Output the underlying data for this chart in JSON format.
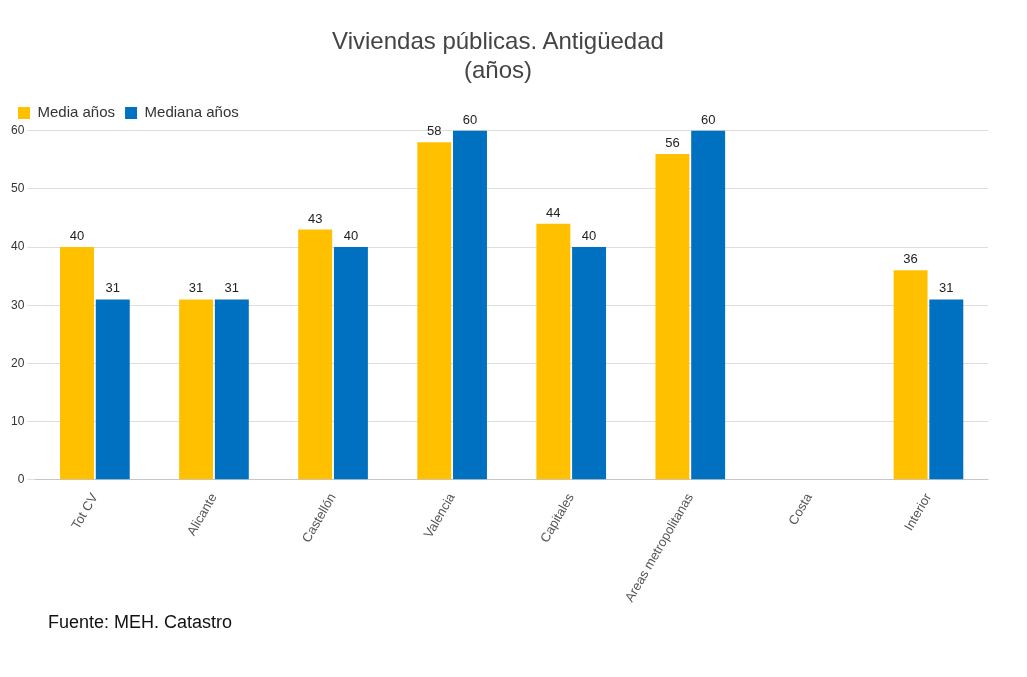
{
  "chart_data": {
    "type": "bar",
    "title": "Viviendas públicas. Antigüedad",
    "subtitle": "(años)",
    "categories": [
      "Tot CV",
      "Alicante",
      "Castellón",
      "Valencia",
      "Capitales",
      "Areas metropolitanas",
      "Costa",
      "Interior"
    ],
    "series": [
      {
        "name": "Media años",
        "color": "#ffc000",
        "values": [
          40,
          31,
          43,
          58,
          44,
          56,
          null,
          36
        ]
      },
      {
        "name": "Mediana años",
        "color": "#0070c0",
        "values": [
          31,
          31,
          40,
          60,
          40,
          60,
          null,
          31
        ]
      }
    ],
    "ylim": [
      0,
      60
    ],
    "yticks": [
      0,
      10,
      20,
      30,
      40,
      50,
      60
    ],
    "grid": "y",
    "legend": "top left",
    "data_labels": true,
    "annotations": [
      "Fuente: MEH. Catastro"
    ]
  }
}
